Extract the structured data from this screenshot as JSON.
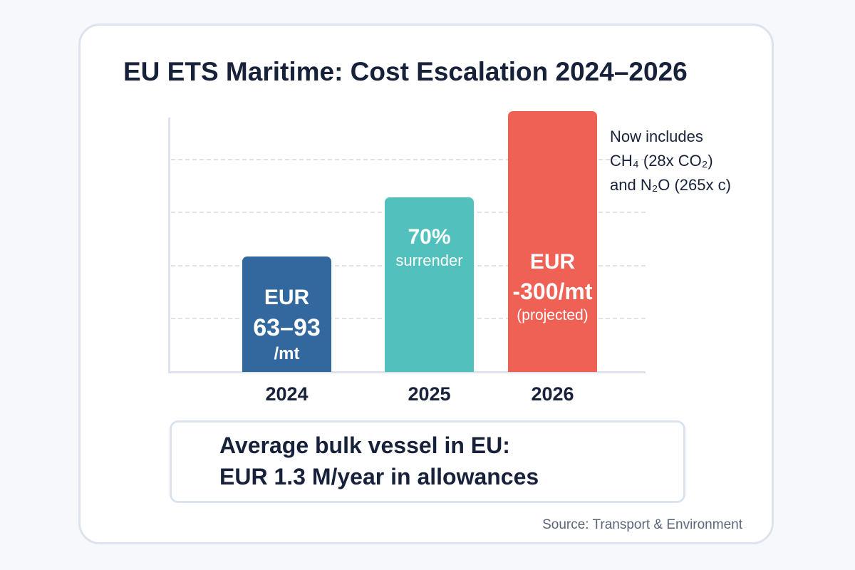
{
  "chart_data": {
    "type": "bar",
    "title": "EU ETS Maritime: Cost Escalation 2024–2026",
    "xlabel": "",
    "ylabel": "",
    "ylim": [
      0,
      5
    ],
    "grid": true,
    "categories": [
      "2024",
      "2025",
      "2026"
    ],
    "values": [
      2.17,
      3.29,
      4.91
    ],
    "colors": [
      "#33689e",
      "#52c0bc",
      "#ef6154"
    ],
    "bar_labels": [
      [
        "EUR",
        "63–93",
        "/mt"
      ],
      [
        "70%",
        "surrender"
      ],
      [
        "EUR",
        "-300/mt",
        "(projected)"
      ]
    ],
    "annotation": [
      "Now includes",
      "CH₄ (28x CO₂)",
      "and N₂O (265x c)"
    ]
  },
  "callout": {
    "line1": "Average bulk vessel in EU:",
    "line2": "EUR 1.3 M/year in allowances"
  },
  "source": "Source: Transport & Environment"
}
